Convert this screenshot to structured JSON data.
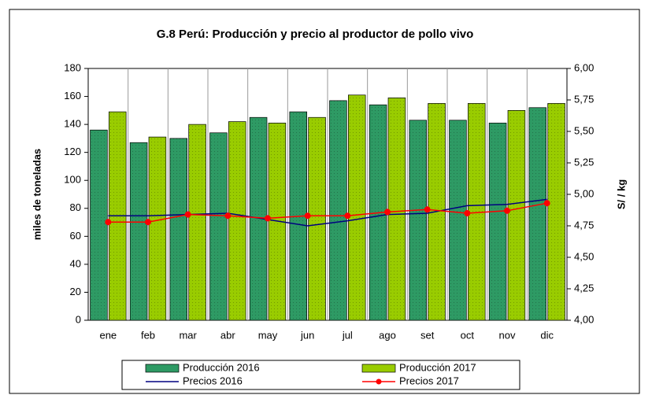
{
  "chart_data": {
    "type": "bar_line",
    "title": "G.8 Perú: Producción y precio al productor de pollo vivo",
    "y_label": "miles de toneladas",
    "y2_label": "S/ / kg",
    "categories": [
      "ene",
      "feb",
      "mar",
      "abr",
      "may",
      "jun",
      "jul",
      "ago",
      "set",
      "oct",
      "nov",
      "dic"
    ],
    "series": [
      {
        "name": "Producción 2016",
        "type": "bar",
        "color": "#2e9a64",
        "values": [
          136,
          127,
          130,
          134,
          145,
          149,
          157,
          154,
          143,
          143,
          141,
          152
        ]
      },
      {
        "name": "Producción 2017",
        "type": "bar",
        "color": "#99cc00",
        "values": [
          149,
          131,
          140,
          142,
          141,
          145,
          161,
          159,
          155,
          155,
          150,
          155
        ]
      },
      {
        "name": "Precios 2016",
        "type": "line",
        "axis": "y2",
        "color": "#000080",
        "values": [
          4.83,
          4.83,
          4.84,
          4.85,
          4.8,
          4.75,
          4.79,
          4.84,
          4.85,
          4.91,
          4.92,
          4.96
        ]
      },
      {
        "name": "Precios 2017",
        "type": "line",
        "axis": "y2",
        "color": "#ff0000",
        "marker": true,
        "values": [
          4.78,
          4.78,
          4.84,
          4.83,
          4.81,
          4.83,
          4.83,
          4.86,
          4.88,
          4.85,
          4.87,
          4.93
        ]
      }
    ],
    "ylim": [
      0,
      180
    ],
    "yticks": [
      0,
      20,
      40,
      60,
      80,
      100,
      120,
      140,
      160,
      180
    ],
    "y2lim": [
      4,
      6
    ],
    "y2ticks": [
      {
        "value": 4,
        "label": "4,00"
      },
      {
        "value": 4.25,
        "label": "4,25"
      },
      {
        "value": 4.5,
        "label": "4,50"
      },
      {
        "value": 4.75,
        "label": "4,75"
      },
      {
        "value": 5,
        "label": "5,00"
      },
      {
        "value": 5.25,
        "label": "5,25"
      },
      {
        "value": 5.5,
        "label": "5,50"
      },
      {
        "value": 5.75,
        "label": "5,75"
      },
      {
        "value": 6,
        "label": "6,00"
      }
    ]
  }
}
